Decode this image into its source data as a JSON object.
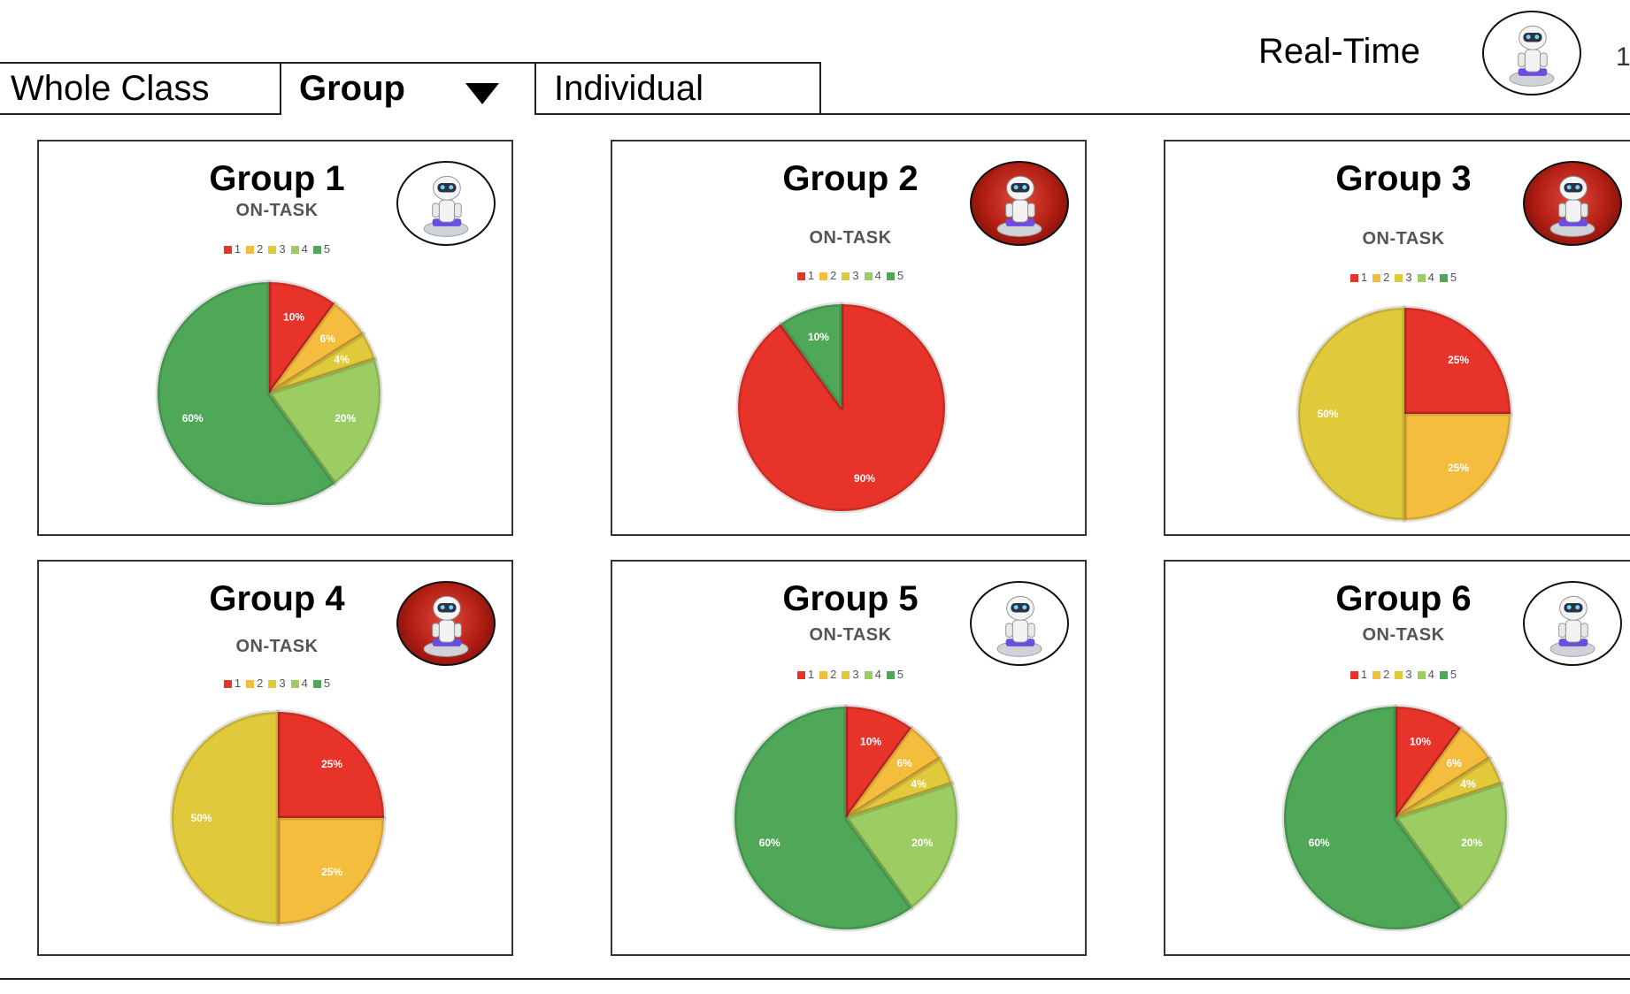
{
  "tabs": {
    "whole_class": "Whole Class",
    "group": "Group",
    "individual": "Individual"
  },
  "header": {
    "realtime_label": "Real-Time",
    "robot_icon": "robot-icon",
    "edge_glyph": "1"
  },
  "colors": {
    "level_1": "#e8332a",
    "level_2": "#f4bd3d",
    "level_3": "#e1c93c",
    "level_4": "#9ccd62",
    "level_5": "#4ea858",
    "robot_alert": "#b01d12"
  },
  "groups": [
    {
      "title": "Group 1",
      "subtitle": "ON-TASK",
      "robot_alert": false,
      "legend": [
        "1",
        "2",
        "3",
        "4",
        "5"
      ],
      "chart_data": {
        "type": "pie",
        "slices": [
          {
            "category": "1",
            "value": 10,
            "label": "10%"
          },
          {
            "category": "2",
            "value": 6,
            "label": "6%"
          },
          {
            "category": "3",
            "value": 4,
            "label": "4%"
          },
          {
            "category": "4",
            "value": 20,
            "label": "20%"
          },
          {
            "category": "5",
            "value": 60,
            "label": "60%"
          }
        ]
      }
    },
    {
      "title": "Group 2",
      "subtitle": "ON-TASK",
      "robot_alert": true,
      "legend": [
        "1",
        "2",
        "3",
        "4",
        "5"
      ],
      "chart_data": {
        "type": "pie",
        "slices": [
          {
            "category": "1",
            "value": 90,
            "label": "90%"
          },
          {
            "category": "5",
            "value": 10,
            "label": "10%"
          }
        ]
      }
    },
    {
      "title": "Group 3",
      "subtitle": "ON-TASK",
      "robot_alert": true,
      "legend": [
        "1",
        "2",
        "3",
        "4",
        "5"
      ],
      "chart_data": {
        "type": "pie",
        "slices": [
          {
            "category": "1",
            "value": 25,
            "label": "25%"
          },
          {
            "category": "2",
            "value": 25,
            "label": "25%"
          },
          {
            "category": "3",
            "value": 50,
            "label": "50%"
          }
        ]
      }
    },
    {
      "title": "Group 4",
      "subtitle": "ON-TASK",
      "robot_alert": true,
      "legend": [
        "1",
        "2",
        "3",
        "4",
        "5"
      ],
      "chart_data": {
        "type": "pie",
        "slices": [
          {
            "category": "1",
            "value": 25,
            "label": "25%"
          },
          {
            "category": "2",
            "value": 25,
            "label": "25%"
          },
          {
            "category": "3",
            "value": 50,
            "label": "50%"
          }
        ]
      }
    },
    {
      "title": "Group 5",
      "subtitle": "ON-TASK",
      "robot_alert": false,
      "legend": [
        "1",
        "2",
        "3",
        "4",
        "5"
      ],
      "chart_data": {
        "type": "pie",
        "slices": [
          {
            "category": "1",
            "value": 10,
            "label": "10%"
          },
          {
            "category": "2",
            "value": 6,
            "label": "6%"
          },
          {
            "category": "3",
            "value": 4,
            "label": "4%"
          },
          {
            "category": "4",
            "value": 20,
            "label": "20%"
          },
          {
            "category": "5",
            "value": 60,
            "label": "60%"
          }
        ]
      }
    },
    {
      "title": "Group 6",
      "subtitle": "ON-TASK",
      "robot_alert": false,
      "legend": [
        "1",
        "2",
        "3",
        "4",
        "5"
      ],
      "chart_data": {
        "type": "pie",
        "slices": [
          {
            "category": "1",
            "value": 10,
            "label": "10%"
          },
          {
            "category": "2",
            "value": 6,
            "label": "6%"
          },
          {
            "category": "3",
            "value": 4,
            "label": "4%"
          },
          {
            "category": "4",
            "value": 20,
            "label": "20%"
          },
          {
            "category": "5",
            "value": 60,
            "label": "60%"
          }
        ]
      }
    }
  ]
}
